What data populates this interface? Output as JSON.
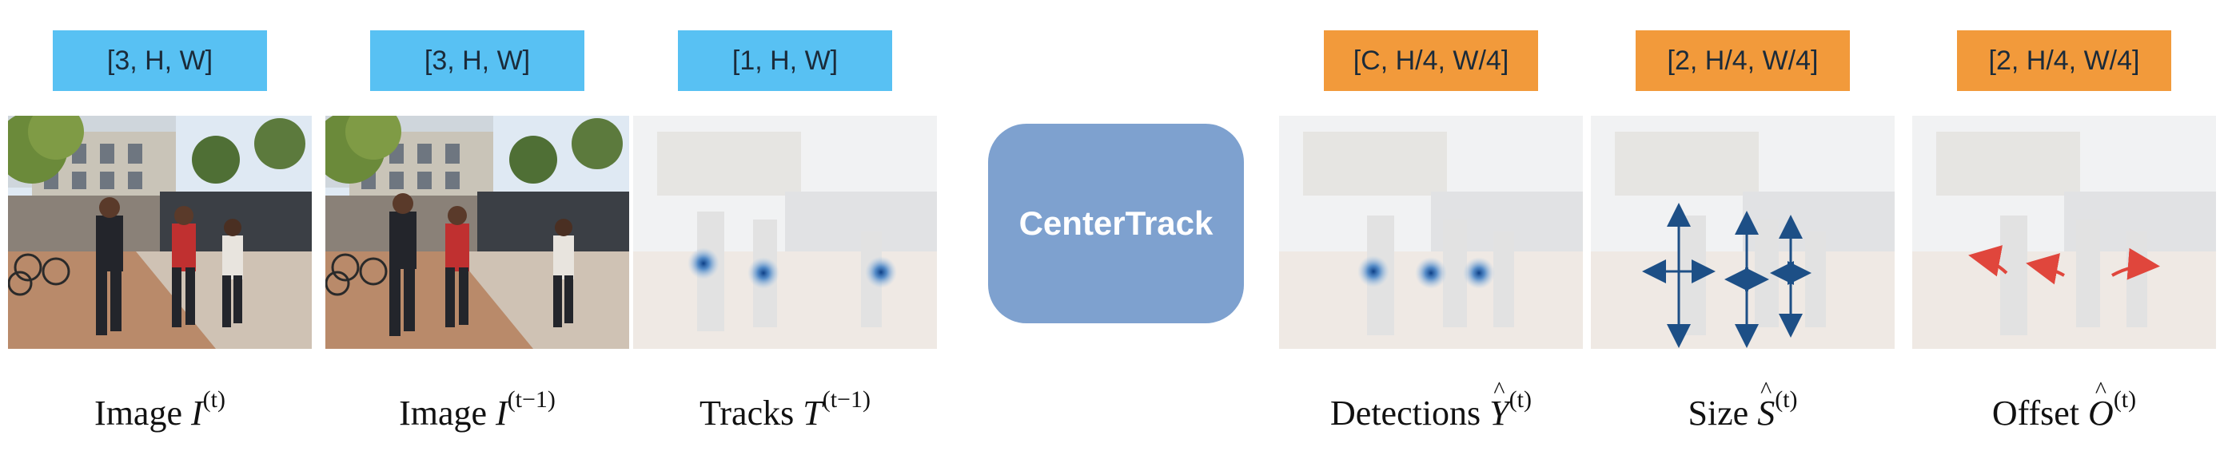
{
  "inputs": [
    {
      "shape": "[3, H, W]",
      "label_word": "Image",
      "symbol": "I",
      "superscript": "(t)",
      "style": "photo"
    },
    {
      "shape": "[3, H, W]",
      "label_word": "Image",
      "symbol": "I",
      "superscript": "(t−1)",
      "style": "photo"
    },
    {
      "shape": "[1, H, W]",
      "label_word": "Tracks",
      "symbol": "T",
      "superscript": "(t−1)",
      "style": "faded-heatmap"
    }
  ],
  "model": {
    "name": "CenterTrack"
  },
  "outputs": [
    {
      "shape": "[C, H/4, W/4]",
      "label_word": "Detections",
      "symbol": "Y",
      "superscript": "(t)",
      "style": "faded-heatmap"
    },
    {
      "shape": "[2, H/4, W/4]",
      "label_word": "Size",
      "symbol": "S",
      "superscript": "(t)",
      "style": "faded-size-arrows"
    },
    {
      "shape": "[2, H/4, W/4]",
      "label_word": "Offset",
      "symbol": "O",
      "superscript": "(t)",
      "style": "faded-offset-arrows"
    }
  ],
  "colors": {
    "input_badge": "#58c1f3",
    "output_badge": "#f29a3b",
    "model_box": "#7ea1cf",
    "heatmap_peak": "#1f5fa0",
    "size_arrow": "#1d4f86",
    "offset_arrow": "#e0463c"
  }
}
